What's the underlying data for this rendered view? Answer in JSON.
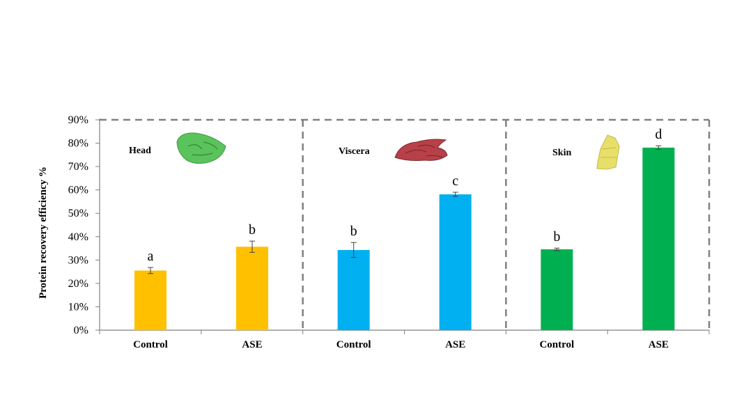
{
  "chart_data": {
    "type": "bar",
    "title": "",
    "xlabel": "",
    "ylabel": "Protein recovery efficiency %",
    "ylim": [
      0,
      90
    ],
    "ytick_labels": [
      "0%",
      "10%",
      "20%",
      "30%",
      "40%",
      "50%",
      "60%",
      "70%",
      "80%",
      "90%"
    ],
    "yticks": [
      0,
      10,
      20,
      30,
      40,
      50,
      60,
      70,
      80,
      90
    ],
    "grid": false,
    "legend": "none",
    "groups": [
      {
        "name": "Head",
        "color": "#FFC000",
        "icon": "fish-head-icon",
        "icon_color": "#5BC35B",
        "bars": [
          {
            "category": "Control",
            "value": 25.5,
            "error": 1.3,
            "significance": "a"
          },
          {
            "category": "ASE",
            "value": 35.7,
            "error": 2.4,
            "significance": "b"
          }
        ]
      },
      {
        "name": "Viscera",
        "color": "#00B0F0",
        "icon": "viscera-icon",
        "icon_color": "#B84048",
        "bars": [
          {
            "category": "Control",
            "value": 34.3,
            "error": 3.2,
            "significance": "b"
          },
          {
            "category": "ASE",
            "value": 58.1,
            "error": 0.9,
            "significance": "c"
          }
        ]
      },
      {
        "name": "Skin",
        "color": "#00B050",
        "icon": "fish-skin-icon",
        "icon_color": "#E8DF6A",
        "bars": [
          {
            "category": "Control",
            "value": 34.6,
            "error": 0.5,
            "significance": "b"
          },
          {
            "category": "ASE",
            "value": 78.1,
            "error": 0.8,
            "significance": "d"
          }
        ]
      }
    ]
  }
}
